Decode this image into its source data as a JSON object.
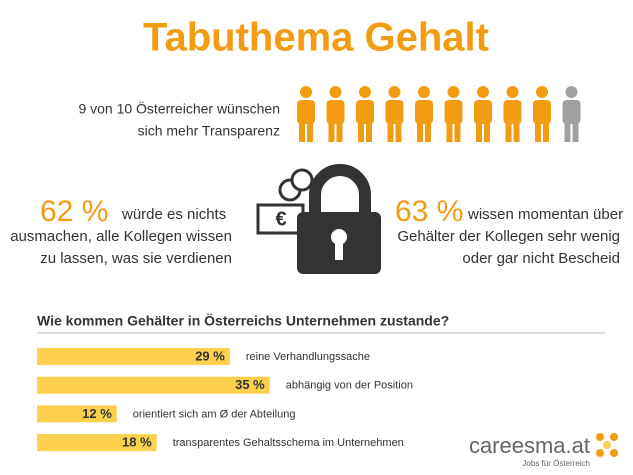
{
  "title": "Tabuthema Gehalt",
  "pictogram": {
    "lines": [
      "9 von 10 Österreicher wünschen",
      "sich mehr Transparenz"
    ],
    "filled": 9,
    "total": 10,
    "color": "#f39c12",
    "rest_color": "#a0a0a0"
  },
  "stats": [
    {
      "value": "62 %",
      "lines": [
        "würde es nichts",
        "ausmachen, alle Kollegen wissen",
        "zu lassen, was sie verdienen"
      ]
    },
    {
      "value": "63 %",
      "lines": [
        "wissen momentan über",
        "Gehälter der Kollegen sehr wenig",
        "oder gar nicht Bescheid"
      ]
    }
  ],
  "chart_data": {
    "type": "bar",
    "orientation": "horizontal",
    "title": "Wie kommen Gehälter in Österreichs Unternehmen zustande?",
    "categories": [
      "reine Verhandlungssache",
      "abhängig von der Position",
      "orientiert sich am Ø der Abteilung",
      "transparentes Gehaltsschema im Unternehmen"
    ],
    "values": [
      29,
      35,
      12,
      18
    ],
    "value_labels": [
      "29 %",
      "35 %",
      "12 %",
      "18 %"
    ],
    "color": "#fdd04e"
  },
  "logo": {
    "name": "careesma.at",
    "tagline": "Jobs für Österreich"
  }
}
